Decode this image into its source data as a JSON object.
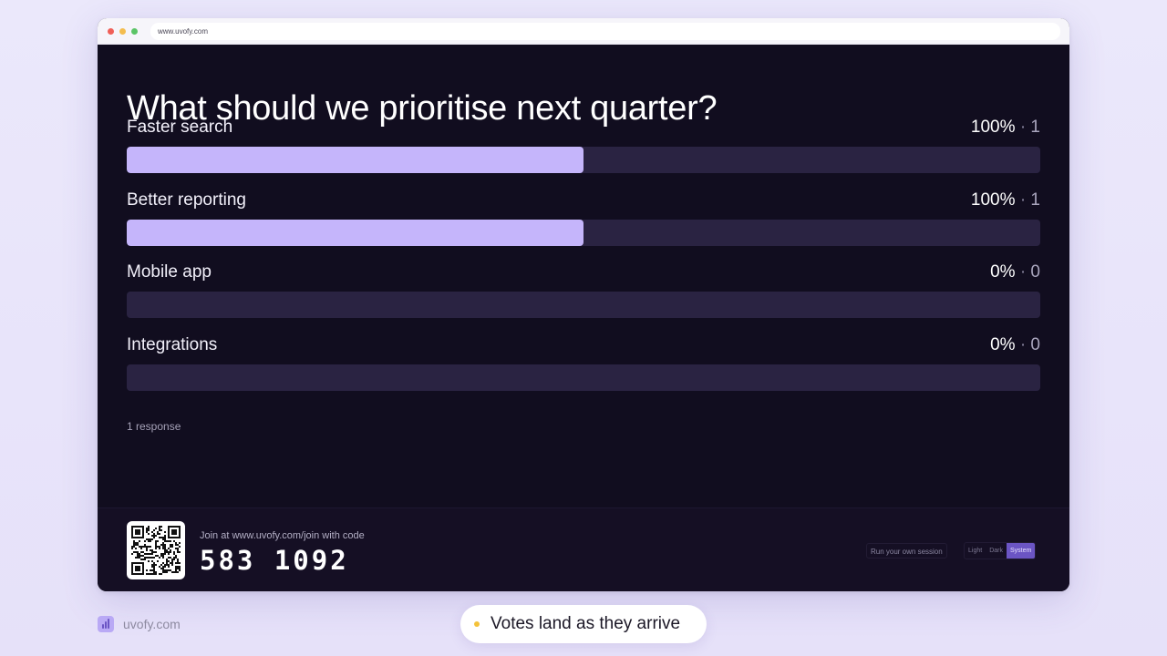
{
  "browser": {
    "url": "www.uvofy.com"
  },
  "poll": {
    "question": "What should we prioritise next quarter?",
    "options": [
      {
        "label": "Faster search",
        "percent_text": "100%",
        "separator": "·",
        "count": "1",
        "fill_fraction": 0.5
      },
      {
        "label": "Better reporting",
        "percent_text": "100%",
        "separator": "·",
        "count": "1",
        "fill_fraction": 0.5
      },
      {
        "label": "Mobile app",
        "percent_text": "0%",
        "separator": "·",
        "count": "0",
        "fill_fraction": 0
      },
      {
        "label": "Integrations",
        "percent_text": "0%",
        "separator": "·",
        "count": "0",
        "fill_fraction": 0
      }
    ],
    "responses": "1 response"
  },
  "footer": {
    "join_text": "Join at www.uvofy.com/join with code",
    "join_code": "583 1092",
    "run_session": "Run your own session",
    "theme": {
      "light": "Light",
      "dark": "Dark",
      "system": "System",
      "selected": "System"
    }
  },
  "brand": {
    "name": "uvofy.com"
  },
  "caption": {
    "text": "Votes land as they arrive"
  },
  "colors": {
    "accent": "#c5b5fb",
    "track": "#2a2342",
    "background": "#110d1f",
    "caption_dot": "#f4c23a"
  }
}
